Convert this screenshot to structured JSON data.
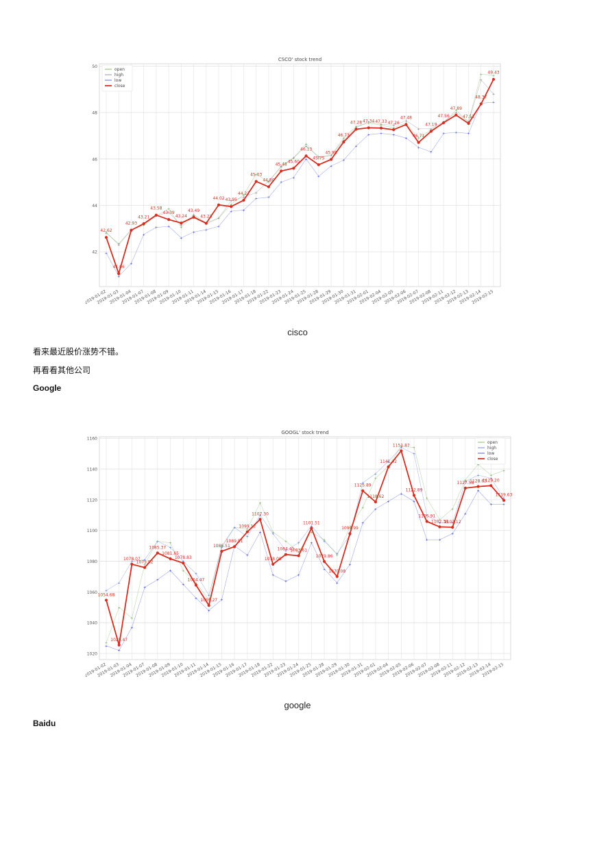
{
  "captions": {
    "cisco": "cisco",
    "google": "google"
  },
  "text": {
    "para1": "看来最近股价涨势不错。",
    "para2": "再看看其他公司",
    "google_heading": "Google",
    "baidu_heading": "Baidu"
  },
  "chart_data": [
    {
      "type": "line",
      "title": "CSCO' stock trend",
      "xlabel": "",
      "ylabel": "",
      "categories": [
        "2019-01-02",
        "2019-01-03",
        "2019-01-04",
        "2019-01-07",
        "2019-01-08",
        "2019-01-09",
        "2019-01-10",
        "2019-01-11",
        "2019-01-14",
        "2019-01-15",
        "2019-01-16",
        "2019-01-17",
        "2019-01-18",
        "2019-01-22",
        "2019-01-23",
        "2019-01-24",
        "2019-01-25",
        "2019-01-28",
        "2019-01-29",
        "2019-01-30",
        "2019-01-31",
        "2019-02-01",
        "2019-02-04",
        "2019-02-05",
        "2019-02-06",
        "2019-02-07",
        "2019-02-08",
        "2019-02-11",
        "2019-02-12",
        "2019-02-13",
        "2019-02-14",
        "2019-02-15"
      ],
      "yticks": [
        42,
        44,
        46,
        48,
        50
      ],
      "ylim": [
        40.5,
        50.1
      ],
      "grid": true,
      "legend_position": "top-left",
      "series": [
        {
          "name": "open",
          "color": "#6aa84f",
          "values": [
            42.8,
            42.35,
            42.95,
            43.15,
            43.55,
            43.85,
            43.05,
            43.55,
            43.2,
            43.45,
            44.05,
            44.45,
            45.35,
            45.0,
            45.7,
            46.05,
            46.65,
            46.05,
            46.15,
            46.9,
            47.4,
            47.55,
            47.45,
            47.35,
            47.55,
            46.9,
            47.25,
            47.55,
            48.1,
            47.6,
            49.65,
            49.6
          ]
        },
        {
          "name": "high",
          "color": "#7a7a7a",
          "values": [
            42.85,
            42.3,
            42.95,
            43.2,
            43.55,
            43.7,
            43.15,
            43.6,
            43.25,
            43.45,
            44.2,
            44.35,
            44.55,
            45.05,
            45.65,
            46.05,
            46.55,
            46.1,
            46.15,
            46.8,
            47.35,
            47.6,
            47.5,
            47.45,
            47.65,
            47.3,
            47.3,
            47.6,
            48.0,
            47.6,
            49.4,
            48.8
          ]
        },
        {
          "name": "low",
          "color": "#3b46d1",
          "values": [
            41.95,
            40.95,
            41.5,
            42.75,
            43.05,
            43.1,
            42.6,
            42.85,
            42.95,
            43.1,
            43.75,
            43.8,
            44.3,
            44.35,
            45.0,
            45.2,
            46.0,
            45.25,
            45.7,
            45.95,
            46.55,
            47.05,
            47.1,
            47.05,
            46.9,
            46.5,
            46.3,
            47.1,
            47.15,
            47.1,
            48.4,
            48.45
          ]
        },
        {
          "name": "close",
          "color": "#d62d20",
          "values": [
            42.62,
            41.06,
            42.93,
            43.21,
            43.58,
            43.39,
            43.24,
            43.49,
            43.23,
            44.02,
            43.95,
            44.22,
            45.03,
            44.8,
            45.48,
            45.6,
            46.13,
            45.75,
            45.98,
            46.73,
            47.28,
            47.34,
            47.33,
            47.26,
            47.48,
            46.71,
            47.19,
            47.56,
            47.89,
            47.53,
            48.37,
            49.43
          ]
        }
      ],
      "data_labels": [
        "42.62",
        "41.06",
        "42.93",
        "43.21",
        "43.58",
        "43.39",
        "43.24",
        "43.49",
        "43.23",
        "44.02",
        "43.95",
        "44.22",
        "45.03",
        "44.80",
        "45.48",
        "45.60",
        "46.13",
        "45.75",
        "45.98",
        "46.73",
        "47.28",
        "47.34",
        "47.33",
        "47.26",
        "47.48",
        "46.71",
        "47.19",
        "47.56",
        "47.89",
        "47.53",
        "48.37",
        "49.43"
      ]
    },
    {
      "type": "line",
      "title": "GOOGL' stock trend",
      "xlabel": "",
      "ylabel": "",
      "categories": [
        "2019-01-02",
        "2019-01-03",
        "2019-01-04",
        "2019-01-07",
        "2019-01-08",
        "2019-01-09",
        "2019-01-10",
        "2019-01-11",
        "2019-01-14",
        "2019-01-15",
        "2019-01-16",
        "2019-01-17",
        "2019-01-18",
        "2019-01-22",
        "2019-01-23",
        "2019-01-24",
        "2019-01-25",
        "2019-01-28",
        "2019-01-29",
        "2019-01-30",
        "2019-01-31",
        "2019-02-01",
        "2019-02-04",
        "2019-02-05",
        "2019-02-06",
        "2019-02-07",
        "2019-02-08",
        "2019-02-11",
        "2019-02-12",
        "2019-02-13",
        "2019-02-14",
        "2019-02-15"
      ],
      "yticks": [
        1020,
        1040,
        1060,
        1080,
        1100,
        1120,
        1140,
        1160
      ],
      "ylim": [
        1016,
        1161
      ],
      "grid": true,
      "legend_position": "top-right",
      "series": [
        {
          "name": "open",
          "color": "#6aa84f",
          "values": [
            1027,
            1050,
            1043,
            1078,
            1093,
            1092,
            1074,
            1066,
            1055,
            1090,
            1102,
            1101,
            1118,
            1099,
            1093,
            1086,
            1099,
            1094,
            1084,
            1102,
            1115,
            1134,
            1142,
            1155,
            1154,
            1121,
            1107,
            1114,
            1133,
            1143,
            1136,
            1139
          ]
        },
        {
          "name": "high",
          "color": "#4c6fd4",
          "values": [
            1061,
            1066,
            1080,
            1081,
            1093,
            1089,
            1080,
            1072,
            1058,
            1089,
            1102,
            1096,
            1110,
            1098,
            1087,
            1092,
            1103,
            1093,
            1085,
            1097,
            1131,
            1137,
            1145,
            1154,
            1150,
            1110,
            1105,
            1105,
            1132,
            1136,
            1134,
            1121
          ]
        },
        {
          "name": "low",
          "color": "#2b36c8",
          "values": [
            1025,
            1022,
            1037,
            1063,
            1068,
            1074,
            1065,
            1056,
            1048,
            1055,
            1090,
            1084,
            1099,
            1071,
            1067,
            1071,
            1092,
            1075,
            1066,
            1078,
            1105,
            1114,
            1119,
            1124,
            1119,
            1094,
            1094,
            1098,
            1111,
            1126,
            1117,
            1117
          ]
        },
        {
          "name": "close",
          "color": "#d62d20",
          "values": [
            1054.68,
            1025.47,
            1078.07,
            1075.92,
            1085.37,
            1081.65,
            1078.83,
            1064.47,
            1051.27,
            1086.51,
            1089.51,
            1099.12,
            1107.3,
            1078.08,
            1084.41,
            1083.61,
            1101.51,
            1079.86,
            1070.08,
            1097.99,
            1125.89,
            1118.62,
            1141.42,
            1151.87,
            1122.89,
            1105.91,
            1102.38,
            1102.12,
            1127.58,
            1128.63,
            1129.2,
            1119.63
          ]
        }
      ],
      "data_labels": [
        "1054.68",
        "1025.47",
        "1078.07",
        "1075.92",
        "1085.37",
        "1081.65",
        "1078.83",
        "1064.47",
        "1051.27",
        "1086.51",
        "1089.51",
        "1099.12",
        "1107.30",
        "1078.08",
        "1084.41",
        "1083.61",
        "1101.51",
        "1079.86",
        "1070.08",
        "1097.99",
        "1125.89",
        "1118.62",
        "1141.42",
        "1151.87",
        "1122.89",
        "1105.91",
        "1102.38",
        "1102.12",
        "1127.58",
        "1128.63",
        "1129.20",
        "1119.63"
      ]
    }
  ]
}
